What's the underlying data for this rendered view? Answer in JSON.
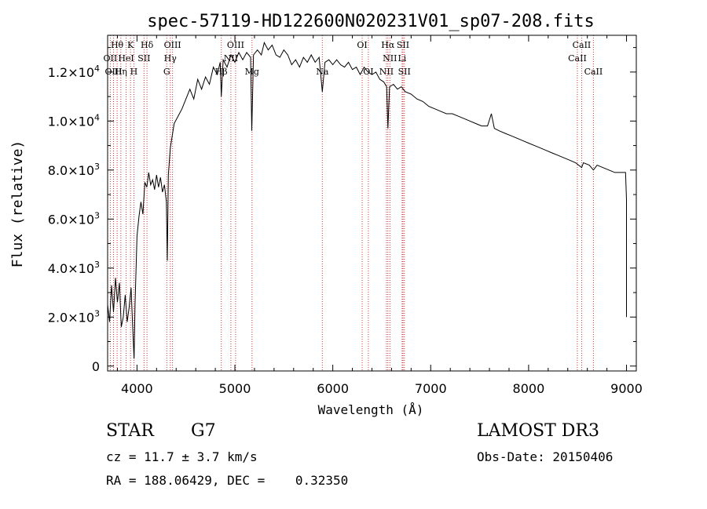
{
  "chart_data": {
    "type": "line",
    "title": "spec-57119-HD122600N020231V01_sp07-208.fits",
    "xlabel": "Wavelength (Å)",
    "ylabel": "Flux (relative)",
    "xlim": [
      3700,
      9100
    ],
    "ylim": [
      -200,
      13500
    ],
    "x_ticks": [
      {
        "value": 4000,
        "label": "4000"
      },
      {
        "value": 5000,
        "label": "5000"
      },
      {
        "value": 6000,
        "label": "6000"
      },
      {
        "value": 7000,
        "label": "7000"
      },
      {
        "value": 8000,
        "label": "8000"
      },
      {
        "value": 9000,
        "label": "9000"
      }
    ],
    "y_ticks": [
      {
        "value": 0,
        "mant": "0",
        "exp": ""
      },
      {
        "value": 2000,
        "mant": "2.0×10",
        "exp": "3"
      },
      {
        "value": 4000,
        "mant": "4.0×10",
        "exp": "3"
      },
      {
        "value": 6000,
        "mant": "6.0×10",
        "exp": "3"
      },
      {
        "value": 8000,
        "mant": "8.0×10",
        "exp": "3"
      },
      {
        "value": 10000,
        "mant": "1.0×10",
        "exp": "4"
      },
      {
        "value": 12000,
        "mant": "1.2×10",
        "exp": "4"
      }
    ],
    "series": [
      {
        "points": [
          [
            3700,
            2500
          ],
          [
            3720,
            1800
          ],
          [
            3740,
            3300
          ],
          [
            3760,
            2200
          ],
          [
            3780,
            3600
          ],
          [
            3800,
            2600
          ],
          [
            3820,
            3400
          ],
          [
            3840,
            1600
          ],
          [
            3860,
            2000
          ],
          [
            3880,
            2900
          ],
          [
            3900,
            1800
          ],
          [
            3920,
            2400
          ],
          [
            3940,
            3200
          ],
          [
            3960,
            1200
          ],
          [
            3970,
            300
          ],
          [
            3980,
            2500
          ],
          [
            4000,
            5300
          ],
          [
            4020,
            6100
          ],
          [
            4040,
            6700
          ],
          [
            4060,
            6200
          ],
          [
            4080,
            7500
          ],
          [
            4100,
            7300
          ],
          [
            4120,
            7900
          ],
          [
            4140,
            7400
          ],
          [
            4160,
            7600
          ],
          [
            4180,
            7200
          ],
          [
            4200,
            7800
          ],
          [
            4220,
            7300
          ],
          [
            4240,
            7700
          ],
          [
            4260,
            7100
          ],
          [
            4280,
            7400
          ],
          [
            4300,
            6700
          ],
          [
            4310,
            4300
          ],
          [
            4320,
            7800
          ],
          [
            4340,
            8900
          ],
          [
            4380,
            9900
          ],
          [
            4420,
            10200
          ],
          [
            4460,
            10500
          ],
          [
            4500,
            10900
          ],
          [
            4540,
            11300
          ],
          [
            4580,
            10900
          ],
          [
            4620,
            11700
          ],
          [
            4660,
            11300
          ],
          [
            4700,
            11800
          ],
          [
            4740,
            11500
          ],
          [
            4780,
            12200
          ],
          [
            4820,
            11900
          ],
          [
            4850,
            12400
          ],
          [
            4861,
            11000
          ],
          [
            4880,
            12500
          ],
          [
            4920,
            12200
          ],
          [
            4960,
            12700
          ],
          [
            5000,
            12400
          ],
          [
            5040,
            12800
          ],
          [
            5080,
            12500
          ],
          [
            5120,
            12800
          ],
          [
            5160,
            12600
          ],
          [
            5172,
            9600
          ],
          [
            5190,
            12700
          ],
          [
            5230,
            12900
          ],
          [
            5270,
            12700
          ],
          [
            5300,
            13200
          ],
          [
            5340,
            12900
          ],
          [
            5380,
            13100
          ],
          [
            5420,
            12700
          ],
          [
            5460,
            12600
          ],
          [
            5500,
            12900
          ],
          [
            5540,
            12700
          ],
          [
            5580,
            12300
          ],
          [
            5620,
            12500
          ],
          [
            5660,
            12200
          ],
          [
            5700,
            12600
          ],
          [
            5740,
            12400
          ],
          [
            5780,
            12700
          ],
          [
            5820,
            12400
          ],
          [
            5860,
            12600
          ],
          [
            5893,
            11200
          ],
          [
            5920,
            12400
          ],
          [
            5960,
            12500
          ],
          [
            6000,
            12300
          ],
          [
            6040,
            12500
          ],
          [
            6080,
            12300
          ],
          [
            6120,
            12200
          ],
          [
            6160,
            12400
          ],
          [
            6200,
            12100
          ],
          [
            6240,
            12200
          ],
          [
            6280,
            11900
          ],
          [
            6320,
            12200
          ],
          [
            6360,
            12000
          ],
          [
            6400,
            11900
          ],
          [
            6440,
            12000
          ],
          [
            6480,
            11700
          ],
          [
            6520,
            11600
          ],
          [
            6550,
            11400
          ],
          [
            6563,
            9700
          ],
          [
            6580,
            11400
          ],
          [
            6620,
            11500
          ],
          [
            6660,
            11300
          ],
          [
            6700,
            11400
          ],
          [
            6740,
            11200
          ],
          [
            6800,
            11100
          ],
          [
            6860,
            10900
          ],
          [
            6920,
            10800
          ],
          [
            6980,
            10600
          ],
          [
            7040,
            10500
          ],
          [
            7100,
            10400
          ],
          [
            7160,
            10300
          ],
          [
            7220,
            10300
          ],
          [
            7280,
            10200
          ],
          [
            7340,
            10100
          ],
          [
            7400,
            10000
          ],
          [
            7460,
            9900
          ],
          [
            7520,
            9800
          ],
          [
            7580,
            9800
          ],
          [
            7620,
            10300
          ],
          [
            7650,
            9700
          ],
          [
            7700,
            9600
          ],
          [
            7760,
            9500
          ],
          [
            7820,
            9400
          ],
          [
            7880,
            9300
          ],
          [
            7940,
            9200
          ],
          [
            8000,
            9100
          ],
          [
            8060,
            9000
          ],
          [
            8120,
            8900
          ],
          [
            8180,
            8800
          ],
          [
            8240,
            8700
          ],
          [
            8300,
            8600
          ],
          [
            8360,
            8500
          ],
          [
            8420,
            8400
          ],
          [
            8480,
            8300
          ],
          [
            8542,
            8100
          ],
          [
            8560,
            8300
          ],
          [
            8620,
            8200
          ],
          [
            8662,
            8000
          ],
          [
            8700,
            8200
          ],
          [
            8760,
            8100
          ],
          [
            8820,
            8000
          ],
          [
            8880,
            7900
          ],
          [
            8940,
            7900
          ],
          [
            8990,
            7900
          ],
          [
            9000,
            6800
          ],
          [
            9000,
            2000
          ]
        ]
      }
    ],
    "line_labels": [
      {
        "text": "Hθ",
        "x": 3797,
        "row": 0
      },
      {
        "text": "K",
        "x": 3934,
        "row": 0
      },
      {
        "text": "Hδ",
        "x": 4102,
        "row": 0
      },
      {
        "text": "OIII",
        "x": 4363,
        "row": 0
      },
      {
        "text": "OIII",
        "x": 5007,
        "row": 0
      },
      {
        "text": "OI",
        "x": 6300,
        "row": 0
      },
      {
        "text": "Hα",
        "x": 6563,
        "row": 0
      },
      {
        "text": "SII",
        "x": 6717,
        "row": 0
      },
      {
        "text": "CaII",
        "x": 8542,
        "row": 0
      },
      {
        "text": "OII",
        "x": 3727,
        "row": 1
      },
      {
        "text": "HeI",
        "x": 3889,
        "row": 1
      },
      {
        "text": "SII",
        "x": 4072,
        "row": 1
      },
      {
        "text": "Hγ",
        "x": 4340,
        "row": 1
      },
      {
        "text": "NII",
        "x": 4959,
        "row": 1
      },
      {
        "text": "NII",
        "x": 6583,
        "row": 1
      },
      {
        "text": "Li",
        "x": 6708,
        "row": 1
      },
      {
        "text": "CaII",
        "x": 8498,
        "row": 1
      },
      {
        "text": "OIII",
        "x": 3760,
        "row": 2
      },
      {
        "text": "Hη",
        "x": 3835,
        "row": 2
      },
      {
        "text": "H",
        "x": 3968,
        "row": 2
      },
      {
        "text": "G",
        "x": 4304,
        "row": 2
      },
      {
        "text": "Hβ",
        "x": 4861,
        "row": 2
      },
      {
        "text": "Mg",
        "x": 5175,
        "row": 2
      },
      {
        "text": "Na",
        "x": 5893,
        "row": 2
      },
      {
        "text": "OI",
        "x": 6363,
        "row": 2
      },
      {
        "text": "NII",
        "x": 6548,
        "row": 2
      },
      {
        "text": "SII",
        "x": 6731,
        "row": 2
      },
      {
        "text": "CaII",
        "x": 8662,
        "row": 2
      }
    ],
    "line_positions": [
      3727,
      3760,
      3797,
      3835,
      3889,
      3934,
      3968,
      4072,
      4102,
      4304,
      4340,
      4363,
      4861,
      4959,
      5007,
      5175,
      5893,
      6300,
      6363,
      6548,
      6563,
      6583,
      6708,
      6717,
      6731,
      8498,
      8542,
      8662
    ],
    "line_color": "#cc3333",
    "grid": false,
    "legend": "none"
  },
  "info": {
    "object_class": "STAR",
    "subclass": "G7",
    "survey": "LAMOST DR3",
    "redshift": "cz = 11.7 ± 3.7 km/s",
    "obs_date": "Obs-Date: 20150406",
    "coords": "RA = 188.06429, DEC =    0.32350"
  }
}
